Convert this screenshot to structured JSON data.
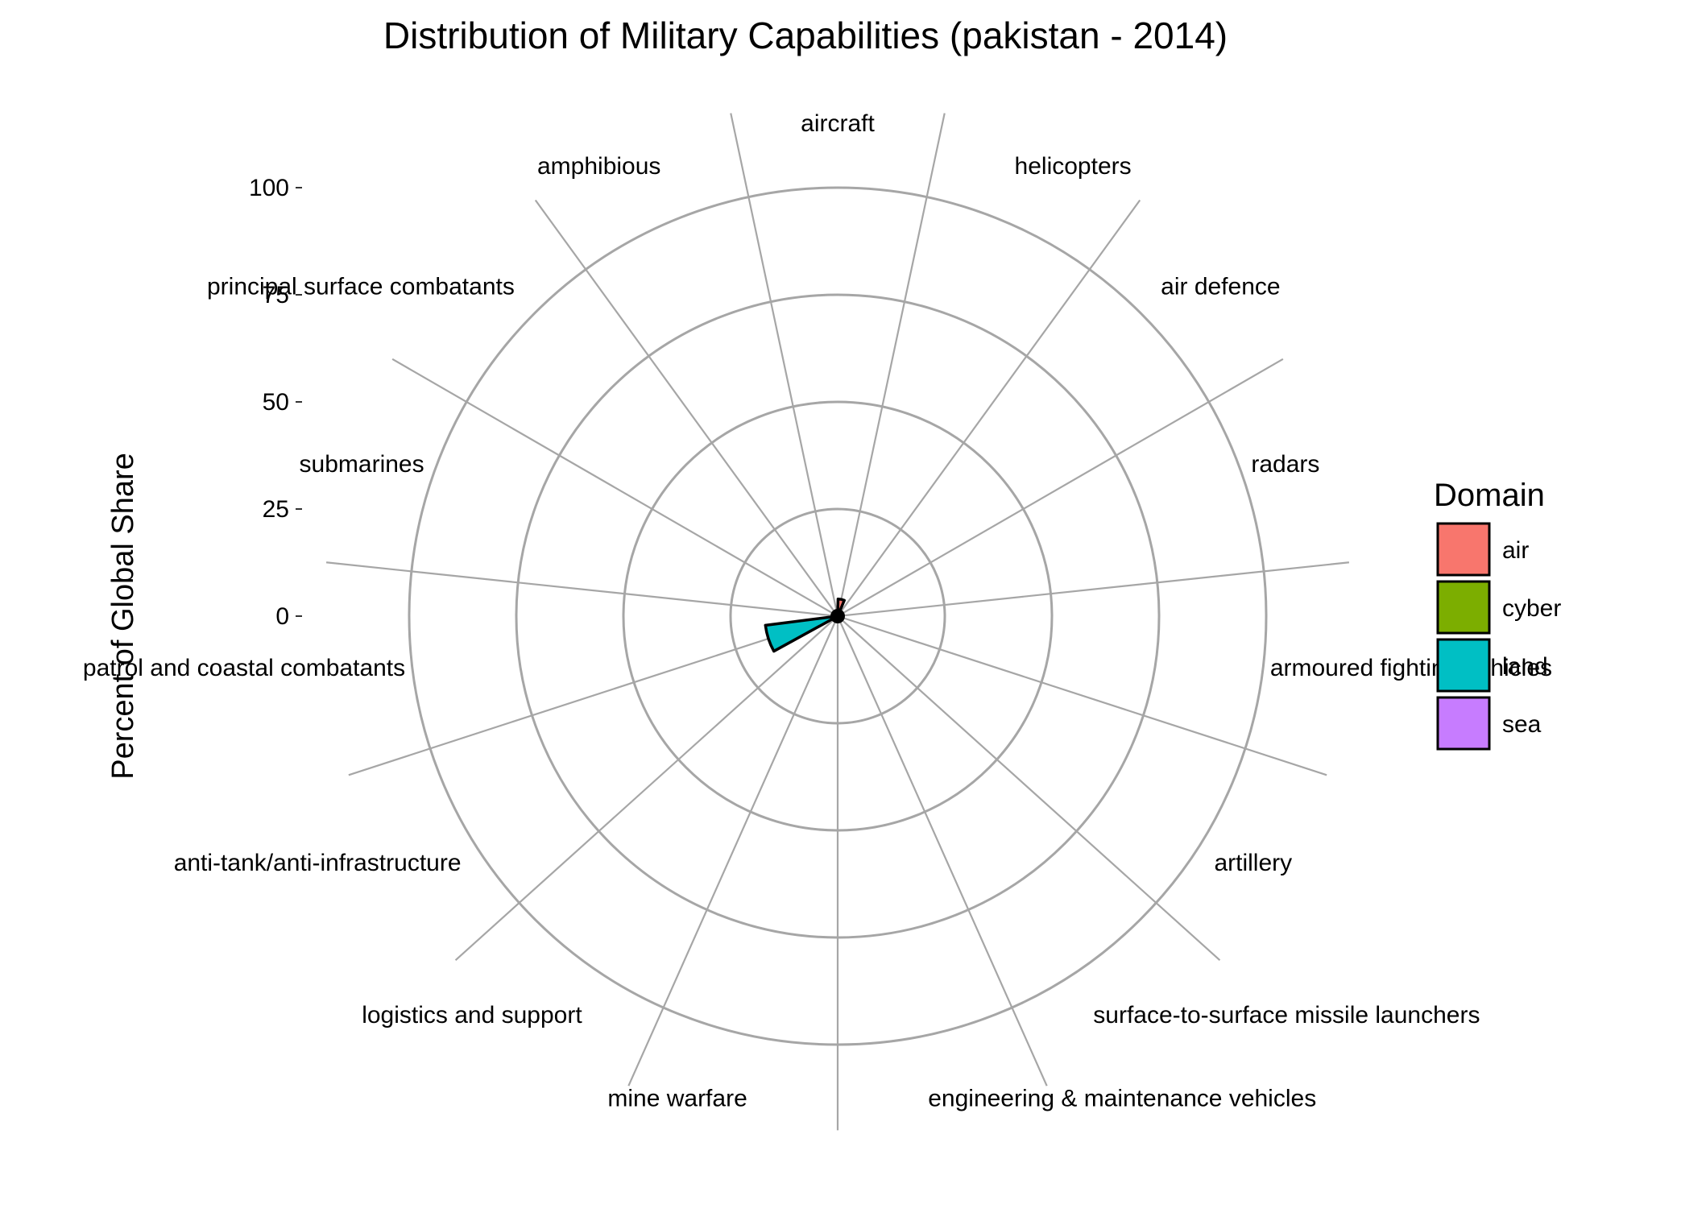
{
  "chart_data": {
    "type": "polar-bar",
    "title": "Distribution of Military Capabilities (pakistan - 2014)",
    "ylabel": "Percent of Global Share",
    "xlabel": "",
    "ylim": [
      0,
      100
    ],
    "yticks": [
      0,
      25,
      50,
      75,
      100
    ],
    "ytick_labels": [
      "0",
      "25",
      "50",
      "75",
      "100"
    ],
    "legend": {
      "title": "Domain",
      "position": "right",
      "items": [
        {
          "label": "air",
          "color": "#F8766D"
        },
        {
          "label": "cyber",
          "color": "#7CAE00"
        },
        {
          "label": "land",
          "color": "#00BFC4"
        },
        {
          "label": "sea",
          "color": "#C77CFF"
        }
      ]
    },
    "categories": [
      {
        "label": "aircraft",
        "domain": "air",
        "value": 4
      },
      {
        "label": "helicopters",
        "domain": "air",
        "value": 1
      },
      {
        "label": "air defence",
        "domain": "air",
        "value": 1
      },
      {
        "label": "radars",
        "domain": "cyber",
        "value": 1
      },
      {
        "label": "armoured fighting vehicles",
        "domain": "land",
        "value": 1
      },
      {
        "label": "artillery",
        "domain": "land",
        "value": 1
      },
      {
        "label": "surface-to-surface missile launchers",
        "domain": "land",
        "value": 1
      },
      {
        "label": "engineering & maintenance vehicles",
        "domain": "land",
        "value": 1
      },
      {
        "label": "mine warfare",
        "domain": "sea",
        "value": 1
      },
      {
        "label": "logistics and support",
        "domain": "land",
        "value": 1
      },
      {
        "label": "anti-tank/anti-infrastructure",
        "domain": "land",
        "value": 17
      },
      {
        "label": "patrol and coastal combatants",
        "domain": "sea",
        "value": 1
      },
      {
        "label": "submarines",
        "domain": "sea",
        "value": 1
      },
      {
        "label": "principal surface combatants",
        "domain": "sea",
        "value": 1
      },
      {
        "label": "amphibious",
        "domain": "sea",
        "value": 1
      }
    ]
  }
}
